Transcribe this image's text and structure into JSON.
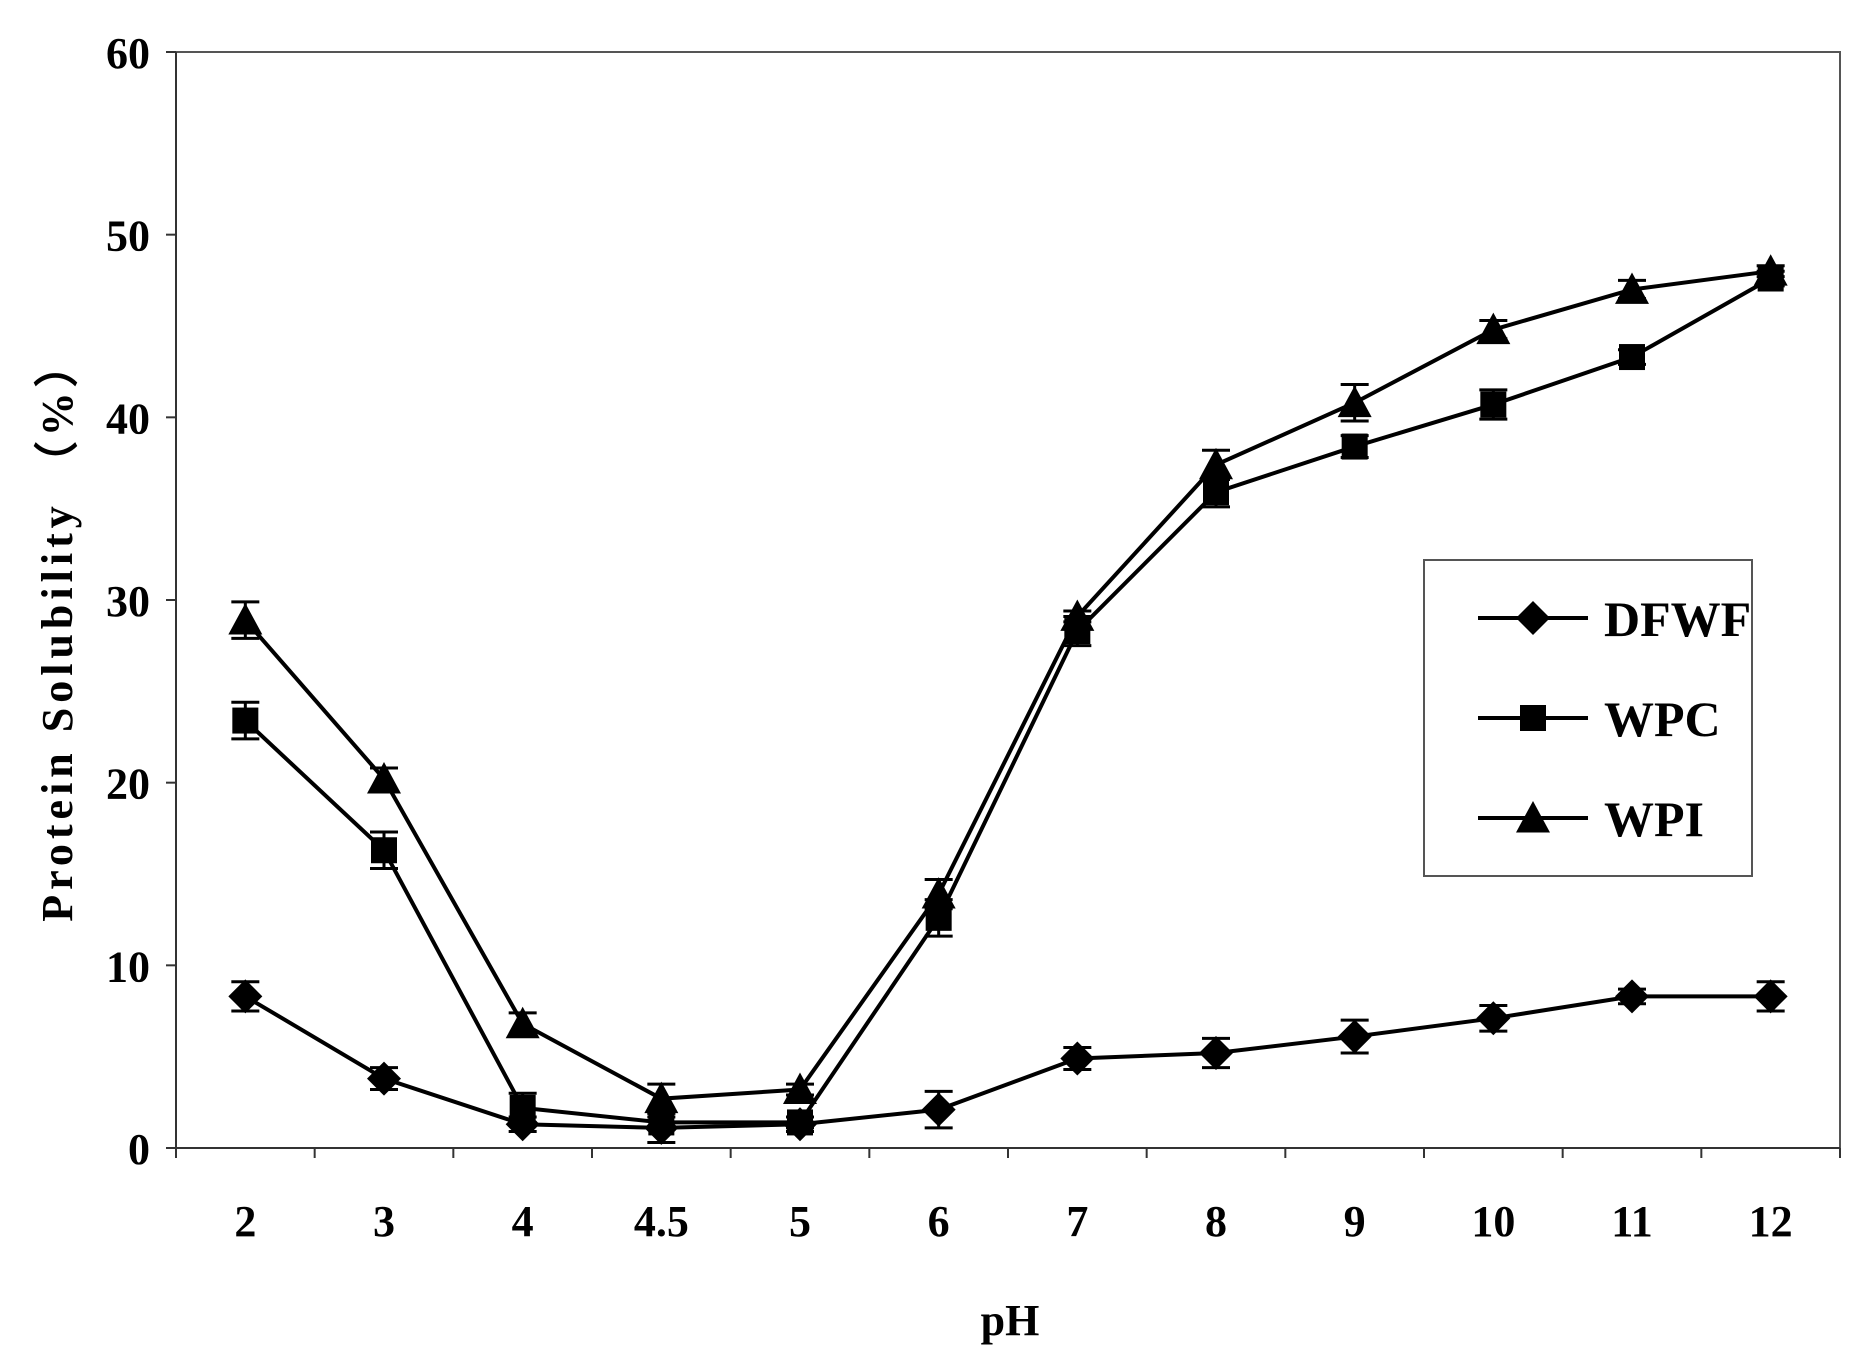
{
  "chart_data": {
    "type": "line",
    "xlabel": "pH",
    "ylabel": "Protein Solubility （%）",
    "categories": [
      "2",
      "3",
      "4",
      "4.5",
      "5",
      "6",
      "7",
      "8",
      "9",
      "10",
      "11",
      "12"
    ],
    "ylim": [
      0,
      60
    ],
    "yticks": [
      "0",
      "10",
      "20",
      "30",
      "40",
      "50",
      "60"
    ],
    "grid": false,
    "legend_position": "right",
    "series": [
      {
        "name": "DFWF",
        "marker": "diamond",
        "values": [
          8.3,
          3.8,
          1.3,
          1.1,
          1.3,
          2.1,
          4.9,
          5.2,
          6.1,
          7.1,
          8.3,
          8.3
        ],
        "errors": [
          0.8,
          0.6,
          0.4,
          0.8,
          0.4,
          1.0,
          0.6,
          0.8,
          0.9,
          0.7,
          0.4,
          0.8
        ]
      },
      {
        "name": "WPC",
        "marker": "square",
        "values": [
          23.4,
          16.3,
          2.2,
          1.4,
          1.4,
          12.6,
          28.3,
          35.9,
          38.4,
          40.7,
          43.3,
          47.6
        ],
        "errors": [
          1.0,
          1.0,
          0.8,
          0.3,
          0.3,
          1.0,
          0.8,
          0.8,
          0.6,
          0.8,
          0.4,
          0.4
        ]
      },
      {
        "name": "WPI",
        "marker": "triangle",
        "values": [
          28.9,
          20.2,
          6.8,
          2.7,
          3.2,
          13.9,
          29.1,
          37.4,
          40.8,
          44.8,
          47.0,
          48.0
        ],
        "errors": [
          1.0,
          0.6,
          0.6,
          0.8,
          0.3,
          0.8,
          0.3,
          0.8,
          1.0,
          0.5,
          0.5,
          0.3
        ]
      }
    ]
  }
}
